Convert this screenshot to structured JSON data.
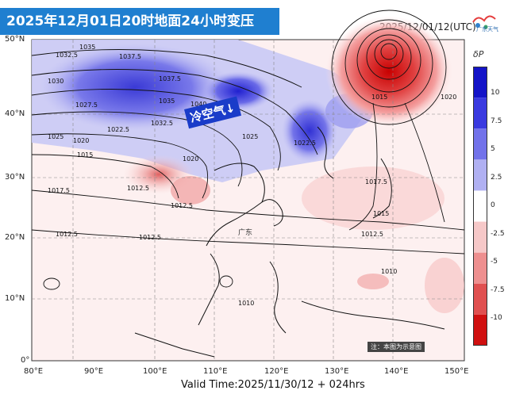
{
  "header": {
    "title": "2025年12月01日20时地面24小时变压",
    "run_time": "2025/12/01/12(UTC)",
    "logo_text": "广东天气"
  },
  "annotation": {
    "cold_air": "冷空气↓",
    "region": "广东",
    "note": "注：本图为示意图"
  },
  "footer": {
    "valid_time": "Valid Time:2025/11/30/12 + 024hrs"
  },
  "axes": {
    "lat_labels": [
      "50°N",
      "40°N",
      "30°N",
      "20°N",
      "10°N",
      "0°"
    ],
    "lon_labels": [
      "80°E",
      "90°E",
      "100°E",
      "110°E",
      "120°E",
      "130°E",
      "140°E",
      "150°E"
    ]
  },
  "colorbar": {
    "title": "δP",
    "labels": [
      "10",
      "7.5",
      "5",
      "2.5",
      "0",
      "-2.5",
      "-5",
      "-7.5",
      "-10"
    ],
    "colors": [
      "#1414c8",
      "#3a3ae0",
      "#7272ea",
      "#b0b0f2",
      "#ffffff",
      "#f6c8c8",
      "#ee8f8f",
      "#e05050",
      "#d01010"
    ]
  },
  "isobars": [
    "1037.5",
    "1035",
    "1032.5",
    "1030",
    "1027.5",
    "1025",
    "1022.5",
    "1020",
    "1017.5",
    "1015",
    "1012.5",
    "1010",
    "1040"
  ]
}
